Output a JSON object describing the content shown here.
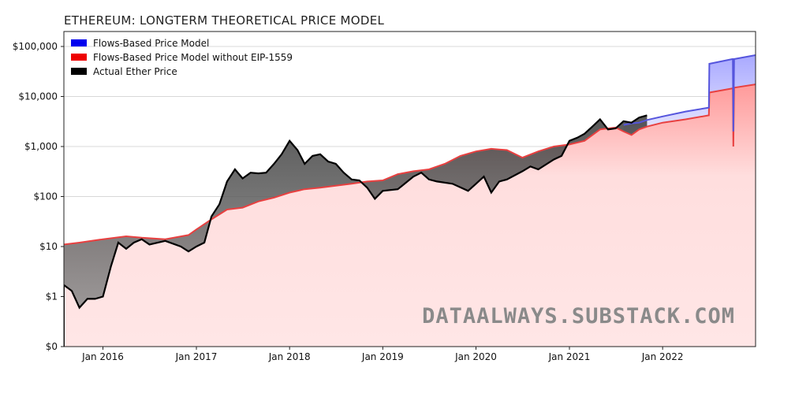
{
  "chart_data": {
    "type": "area",
    "title": "ETHEREUM: LONGTERM THEORETICAL PRICE MODEL",
    "xlabel": "",
    "ylabel": "",
    "y_scale": "log",
    "y_floor_label": "$0",
    "xlim": [
      "2015-08-01",
      "2022-12-31"
    ],
    "ylim": [
      0.1,
      100000
    ],
    "y_ticks": [
      {
        "value": 0.1,
        "label": "$0"
      },
      {
        "value": 1,
        "label": "$1"
      },
      {
        "value": 10,
        "label": "$10"
      },
      {
        "value": 100,
        "label": "$100"
      },
      {
        "value": 1000,
        "label": "$1,000"
      },
      {
        "value": 10000,
        "label": "$10,000"
      },
      {
        "value": 100000,
        "label": "$100,000"
      }
    ],
    "x_ticks": [
      {
        "date": "2016-01-01",
        "label": "Jan 2016"
      },
      {
        "date": "2017-01-01",
        "label": "Jan 2017"
      },
      {
        "date": "2018-01-01",
        "label": "Jan 2018"
      },
      {
        "date": "2019-01-01",
        "label": "Jan 2019"
      },
      {
        "date": "2020-01-01",
        "label": "Jan 2020"
      },
      {
        "date": "2021-01-01",
        "label": "Jan 2021"
      },
      {
        "date": "2022-01-01",
        "label": "Jan 2022"
      }
    ],
    "grid": true,
    "legend_placement": "top-left",
    "colors": {
      "flows": "#1a1aff",
      "flows_line": "#5555dd",
      "no_eip": "#ff1a1a",
      "no_eip_line": "#e84040",
      "actual": "#000000",
      "gap_fill": "#5a5a5a",
      "blue_band": "#c9c9ff",
      "red_area": "#ffd6d6"
    },
    "series": [
      {
        "name": "Flows-Based Price Model",
        "color": "#1a1aff",
        "points": [
          [
            "2021-08-01",
            2700
          ],
          [
            "2021-09-01",
            2900
          ],
          [
            "2021-10-01",
            3000
          ],
          [
            "2021-11-01",
            3400
          ],
          [
            "2022-01-01",
            4000
          ],
          [
            "2022-04-01",
            5000
          ],
          [
            "2022-07-01",
            6000
          ],
          [
            "2022-07-03",
            45000
          ],
          [
            "2022-10-01",
            56000
          ],
          [
            "2022-10-03",
            56000
          ],
          [
            "2022-10-05",
            2000
          ],
          [
            "2022-10-08",
            56000
          ],
          [
            "2022-12-31",
            67000
          ]
        ]
      },
      {
        "name": "Flows-Based Price Model without EIP-1559",
        "color": "#ff1a1a",
        "points": [
          [
            "2015-08-01",
            11
          ],
          [
            "2015-10-01",
            12
          ],
          [
            "2016-01-01",
            14
          ],
          [
            "2016-04-01",
            16
          ],
          [
            "2016-06-01",
            15
          ],
          [
            "2016-09-01",
            14
          ],
          [
            "2016-12-01",
            17
          ],
          [
            "2017-01-01",
            22
          ],
          [
            "2017-03-01",
            35
          ],
          [
            "2017-05-01",
            55
          ],
          [
            "2017-07-01",
            60
          ],
          [
            "2017-09-01",
            80
          ],
          [
            "2017-11-01",
            95
          ],
          [
            "2018-01-01",
            120
          ],
          [
            "2018-03-01",
            140
          ],
          [
            "2018-05-01",
            150
          ],
          [
            "2018-07-01",
            165
          ],
          [
            "2018-09-01",
            180
          ],
          [
            "2018-11-01",
            200
          ],
          [
            "2019-01-01",
            210
          ],
          [
            "2019-03-01",
            280
          ],
          [
            "2019-05-01",
            320
          ],
          [
            "2019-07-01",
            350
          ],
          [
            "2019-09-01",
            450
          ],
          [
            "2019-11-01",
            650
          ],
          [
            "2020-01-01",
            800
          ],
          [
            "2020-03-01",
            900
          ],
          [
            "2020-05-01",
            850
          ],
          [
            "2020-07-01",
            600
          ],
          [
            "2020-09-01",
            800
          ],
          [
            "2020-11-01",
            1000
          ],
          [
            "2021-01-01",
            1100
          ],
          [
            "2021-03-01",
            1300
          ],
          [
            "2021-05-01",
            2200
          ],
          [
            "2021-07-01",
            2400
          ],
          [
            "2021-08-01",
            2000
          ],
          [
            "2021-09-01",
            1700
          ],
          [
            "2021-10-01",
            2200
          ],
          [
            "2021-11-01",
            2500
          ],
          [
            "2022-01-01",
            3000
          ],
          [
            "2022-04-01",
            3500
          ],
          [
            "2022-07-01",
            4200
          ],
          [
            "2022-07-03",
            12000
          ],
          [
            "2022-10-01",
            14500
          ],
          [
            "2022-10-03",
            14500
          ],
          [
            "2022-10-05",
            1000
          ],
          [
            "2022-10-08",
            15000
          ],
          [
            "2022-12-31",
            17500
          ]
        ]
      },
      {
        "name": "Actual Ether Price",
        "color": "#000000",
        "points": [
          [
            "2015-08-01",
            1.7
          ],
          [
            "2015-09-01",
            1.3
          ],
          [
            "2015-10-01",
            0.6
          ],
          [
            "2015-11-01",
            0.9
          ],
          [
            "2015-12-01",
            0.9
          ],
          [
            "2016-01-01",
            1.0
          ],
          [
            "2016-02-01",
            4
          ],
          [
            "2016-03-01",
            12
          ],
          [
            "2016-04-01",
            9
          ],
          [
            "2016-05-01",
            12
          ],
          [
            "2016-06-01",
            14
          ],
          [
            "2016-07-01",
            11
          ],
          [
            "2016-09-01",
            13
          ],
          [
            "2016-11-01",
            10
          ],
          [
            "2016-12-01",
            8
          ],
          [
            "2017-01-01",
            10
          ],
          [
            "2017-02-01",
            12
          ],
          [
            "2017-03-01",
            40
          ],
          [
            "2017-04-01",
            70
          ],
          [
            "2017-05-01",
            200
          ],
          [
            "2017-06-01",
            350
          ],
          [
            "2017-07-01",
            230
          ],
          [
            "2017-08-01",
            300
          ],
          [
            "2017-09-01",
            290
          ],
          [
            "2017-10-01",
            300
          ],
          [
            "2017-11-01",
            450
          ],
          [
            "2017-12-01",
            700
          ],
          [
            "2018-01-01",
            1300
          ],
          [
            "2018-02-01",
            850
          ],
          [
            "2018-03-01",
            450
          ],
          [
            "2018-04-01",
            650
          ],
          [
            "2018-05-01",
            700
          ],
          [
            "2018-06-01",
            500
          ],
          [
            "2018-07-01",
            450
          ],
          [
            "2018-08-01",
            300
          ],
          [
            "2018-09-01",
            220
          ],
          [
            "2018-10-01",
            210
          ],
          [
            "2018-11-01",
            150
          ],
          [
            "2018-12-01",
            90
          ],
          [
            "2019-01-01",
            130
          ],
          [
            "2019-03-01",
            140
          ],
          [
            "2019-05-01",
            250
          ],
          [
            "2019-06-01",
            300
          ],
          [
            "2019-07-01",
            220
          ],
          [
            "2019-08-01",
            200
          ],
          [
            "2019-10-01",
            180
          ],
          [
            "2019-12-01",
            130
          ],
          [
            "2020-01-01",
            180
          ],
          [
            "2020-02-01",
            250
          ],
          [
            "2020-03-01",
            120
          ],
          [
            "2020-04-01",
            200
          ],
          [
            "2020-05-01",
            220
          ],
          [
            "2020-07-01",
            320
          ],
          [
            "2020-08-01",
            400
          ],
          [
            "2020-09-01",
            350
          ],
          [
            "2020-11-01",
            550
          ],
          [
            "2020-12-01",
            650
          ],
          [
            "2021-01-01",
            1300
          ],
          [
            "2021-02-01",
            1500
          ],
          [
            "2021-03-01",
            1800
          ],
          [
            "2021-04-01",
            2500
          ],
          [
            "2021-05-01",
            3500
          ],
          [
            "2021-06-01",
            2200
          ],
          [
            "2021-07-01",
            2300
          ],
          [
            "2021-08-01",
            3200
          ],
          [
            "2021-09-01",
            3000
          ],
          [
            "2021-10-01",
            3800
          ],
          [
            "2021-11-01",
            4200
          ]
        ]
      }
    ],
    "legend": [
      {
        "label": "Flows-Based Price Model",
        "color": "#0000ee"
      },
      {
        "label": "Flows-Based Price Model without EIP-1559",
        "color": "#ee0000"
      },
      {
        "label": "Actual Ether Price",
        "color": "#000000"
      }
    ],
    "watermark": "DATAALWAYS.SUBSTACK.COM"
  }
}
